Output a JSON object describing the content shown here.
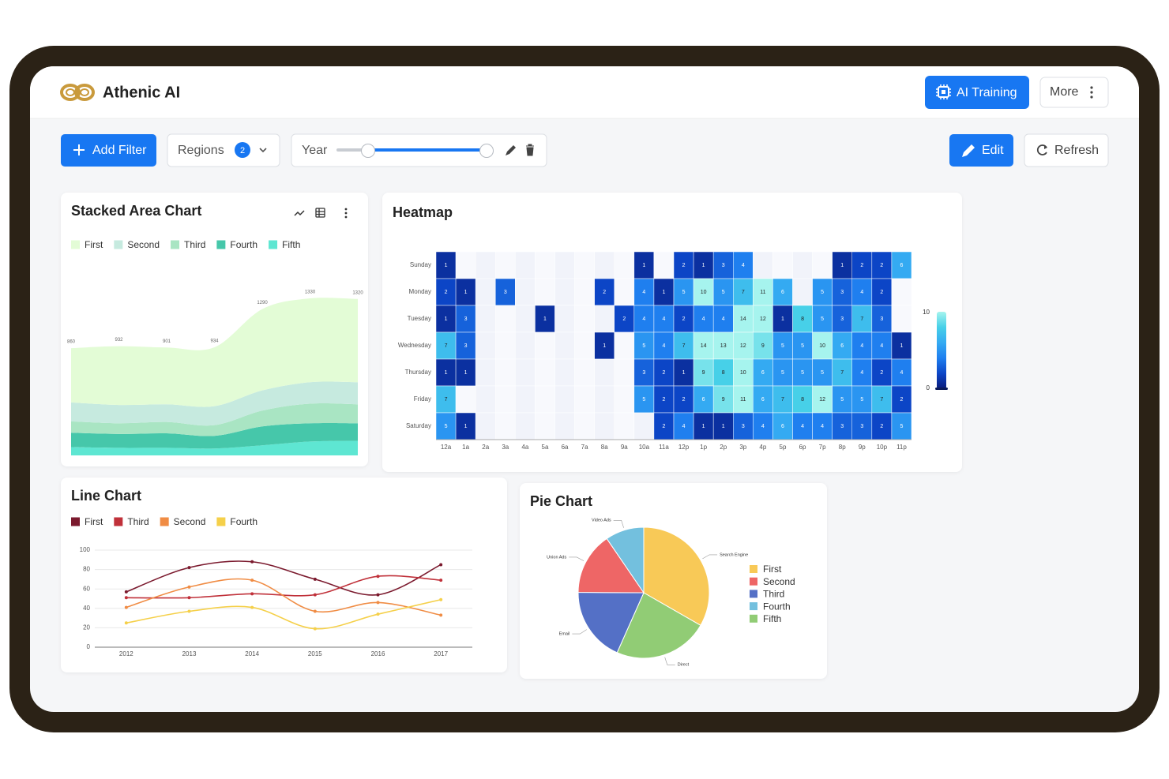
{
  "header": {
    "brand": "Athenic AI",
    "ai_training": "AI Training",
    "more": "More"
  },
  "toolbar": {
    "add_filter": "Add Filter",
    "regions": "Regions",
    "regions_count": 2,
    "year": "Year",
    "edit": "Edit",
    "refresh": "Refresh"
  },
  "chart_data": [
    {
      "type": "area",
      "stacked": true,
      "title": "Stacked Area Chart",
      "series": [
        {
          "name": "First",
          "color": "#e3fcd6",
          "labels": true,
          "values": [
            860,
            932,
            901,
            934,
            1290,
            1330,
            1320
          ]
        },
        {
          "name": "Second",
          "color": "#c6eadf",
          "values": [
            300,
            290,
            280,
            300,
            320,
            340,
            350
          ]
        },
        {
          "name": "Third",
          "color": "#a9e5c3",
          "values": [
            180,
            170,
            180,
            170,
            250,
            310,
            300
          ]
        },
        {
          "name": "Fourth",
          "color": "#46c7aa",
          "values": [
            230,
            220,
            230,
            200,
            300,
            290,
            280
          ]
        },
        {
          "name": "Fifth",
          "color": "#5ee6d2",
          "values": [
            130,
            120,
            120,
            110,
            160,
            220,
            230
          ]
        }
      ]
    },
    {
      "type": "heatmap",
      "title": "Heatmap",
      "x_categories": [
        "12a",
        "1a",
        "2a",
        "3a",
        "4a",
        "5a",
        "6a",
        "7a",
        "8a",
        "9a",
        "10a",
        "11a",
        "12p",
        "1p",
        "2p",
        "3p",
        "4p",
        "5p",
        "6p",
        "7p",
        "8p",
        "9p",
        "10p",
        "11p"
      ],
      "y_categories": [
        "Sunday",
        "Monday",
        "Tuesday",
        "Wednesday",
        "Thursday",
        "Friday",
        "Saturday"
      ],
      "values": [
        [
          1,
          null,
          null,
          null,
          null,
          null,
          null,
          null,
          null,
          null,
          1,
          null,
          2,
          1,
          3,
          4,
          null,
          null,
          null,
          null,
          1,
          2,
          2,
          6
        ],
        [
          2,
          1,
          null,
          3,
          null,
          null,
          null,
          null,
          2,
          null,
          4,
          1,
          5,
          10,
          5,
          7,
          11,
          6,
          null,
          5,
          3,
          4,
          2,
          null
        ],
        [
          1,
          3,
          null,
          null,
          null,
          1,
          null,
          null,
          null,
          2,
          4,
          4,
          2,
          4,
          4,
          14,
          12,
          1,
          8,
          5,
          3,
          7,
          3,
          null
        ],
        [
          7,
          3,
          null,
          null,
          null,
          null,
          null,
          null,
          1,
          null,
          5,
          4,
          7,
          14,
          13,
          12,
          9,
          5,
          5,
          10,
          6,
          4,
          4,
          1
        ],
        [
          1,
          1,
          null,
          null,
          null,
          null,
          null,
          null,
          null,
          null,
          3,
          2,
          1,
          9,
          8,
          10,
          6,
          5,
          5,
          5,
          7,
          4,
          2,
          4
        ],
        [
          7,
          null,
          null,
          null,
          null,
          null,
          null,
          null,
          null,
          null,
          5,
          2,
          2,
          6,
          9,
          11,
          6,
          7,
          8,
          12,
          5,
          5,
          7,
          2
        ],
        [
          5,
          1,
          null,
          null,
          null,
          null,
          null,
          null,
          null,
          null,
          null,
          2,
          4,
          1,
          1,
          3,
          4,
          6,
          4,
          4,
          3,
          3,
          2,
          5
        ]
      ],
      "visual_map": {
        "min": 0,
        "max": 10,
        "colors": [
          "#0a1a7a",
          "#0c45c6",
          "#1f7fef",
          "#34aaf2",
          "#47d0e8",
          "#a6f4ee"
        ]
      }
    },
    {
      "type": "line",
      "title": "Line Chart",
      "smooth": true,
      "grid": true,
      "categories": [
        "2012",
        "2013",
        "2014",
        "2015",
        "2016",
        "2017"
      ],
      "series": [
        {
          "name": "First",
          "color": "#7b1a2e",
          "values": [
            57,
            82,
            88,
            70,
            54,
            85
          ]
        },
        {
          "name": "Third",
          "color": "#c0313a",
          "values": [
            51,
            51,
            55,
            54,
            73,
            69
          ]
        },
        {
          "name": "Second",
          "color": "#f08c44",
          "values": [
            41,
            62,
            69,
            37,
            46,
            33
          ]
        },
        {
          "name": "Fourth",
          "color": "#f5d04a",
          "values": [
            25,
            37,
            41,
            19,
            34,
            49
          ]
        }
      ],
      "ylim": [
        0,
        100
      ],
      "yticks": [
        0,
        20,
        40,
        60,
        80,
        100
      ]
    },
    {
      "type": "pie",
      "title": "Pie Chart",
      "categories": [
        "Search Engine",
        "Direct",
        "Email",
        "Union Ads",
        "Video Ads"
      ],
      "legend": [
        "First",
        "Second",
        "Third",
        "Fourth",
        "Fifth"
      ],
      "values": [
        1048,
        735,
        580,
        484,
        300
      ],
      "colors": [
        "#f8c957",
        "#91cc75",
        "#5470c6",
        "#ee6666",
        "#73c0de"
      ],
      "legend_colors": [
        "#f8c957",
        "#ee6666",
        "#5470c6",
        "#73c0de",
        "#91cc75"
      ]
    }
  ]
}
